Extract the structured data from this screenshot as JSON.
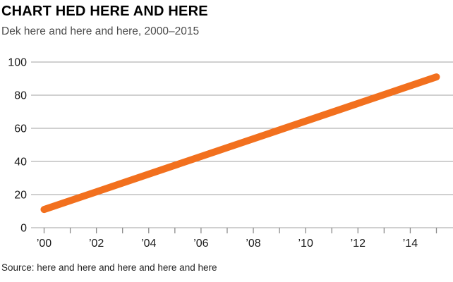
{
  "header": {
    "title": "CHART HED HERE AND HERE",
    "dek": "Dek here and here and here, 2000–2015"
  },
  "footer": {
    "source": "Source: here and here and here and here and here"
  },
  "colors": {
    "background": "#ffffff",
    "line": "#f2701e",
    "grid": "#b5b5b5",
    "tick": "#8a8a8a",
    "axis_label": "#1a1a1a",
    "title": "#000000",
    "dek": "#4a4a4a",
    "source": "#1f1f1f"
  },
  "chart_data": {
    "type": "line",
    "title": "CHART HED HERE AND HERE",
    "subtitle": "Dek here and here and here, 2000–2015",
    "source": "Source: here and here and here and here and here",
    "xlim": [
      2000,
      2015
    ],
    "ylim": [
      0,
      100
    ],
    "y_ticks": [
      0,
      20,
      40,
      60,
      80,
      100
    ],
    "x_ticks": [
      2000,
      2001,
      2002,
      2003,
      2004,
      2005,
      2006,
      2007,
      2008,
      2009,
      2010,
      2011,
      2012,
      2013,
      2014,
      2015
    ],
    "x_labels": [
      {
        "year": 2000,
        "label": "’00"
      },
      {
        "year": 2002,
        "label": "’02"
      },
      {
        "year": 2004,
        "label": "’04"
      },
      {
        "year": 2006,
        "label": "’06"
      },
      {
        "year": 2008,
        "label": "’08"
      },
      {
        "year": 2010,
        "label": "’10"
      },
      {
        "year": 2012,
        "label": "’12"
      },
      {
        "year": 2014,
        "label": "’14"
      }
    ],
    "grid": "horizontal",
    "legend": "none",
    "series": [
      {
        "name": "series-1",
        "shape": "straight-line",
        "points": [
          {
            "x": 2000,
            "y": 11
          },
          {
            "x": 2015,
            "y": 91
          }
        ]
      }
    ]
  }
}
